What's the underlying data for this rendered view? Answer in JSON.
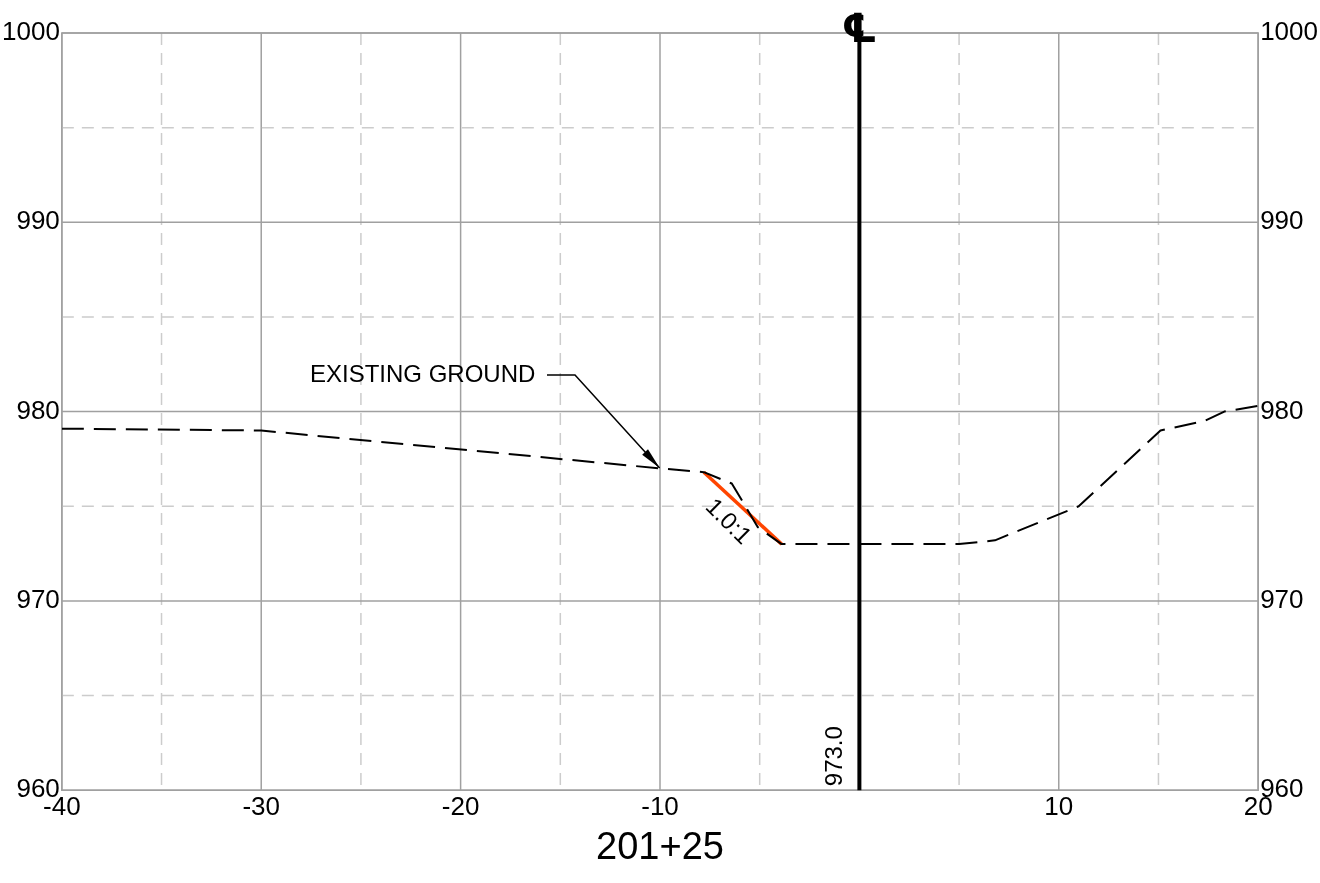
{
  "chart_data": {
    "type": "line",
    "xlabel": "201+25",
    "xlim": [
      -40,
      20
    ],
    "xticks": [
      -40,
      {
        "value": -35,
        "label": null
      },
      -30,
      {
        "value": -25,
        "label": null
      },
      -20,
      {
        "value": -15,
        "label": null
      },
      -10,
      {
        "value": -5,
        "label": null
      },
      {
        "value": 0,
        "label": null
      },
      {
        "value": 5,
        "label": null
      },
      10,
      {
        "value": 15,
        "label": null
      },
      20
    ],
    "ylim": [
      960,
      1000
    ],
    "yticks": [
      960,
      {
        "value": 965,
        "label": null
      },
      970,
      {
        "value": 975,
        "label": null
      },
      980,
      {
        "value": 985,
        "label": null
      },
      990,
      {
        "value": 995,
        "label": null
      },
      1000
    ],
    "y2lim": [
      960,
      1000
    ],
    "y2ticks": [
      960,
      970,
      980,
      990,
      1000
    ],
    "grid": true,
    "legend": false,
    "marker": "none",
    "series": [
      {
        "color": "#000000",
        "line_style": "dashed",
        "x": [
          -40,
          -30,
          -10,
          -7.8,
          -6.4,
          -6.0,
          -5.1,
          -3.9,
          5.0,
          6.8,
          11.0,
          15.1,
          17.3,
          18.3,
          20
        ],
        "values": [
          979.1,
          979.0,
          977.0,
          976.8,
          976.2,
          975.5,
          973.9,
          973.0,
          973.0,
          973.2,
          975.0,
          979.0,
          979.5,
          980.0,
          980.3
        ]
      },
      {
        "color": "#ff4500",
        "line_style": "solid",
        "x": [
          -7.8,
          -3.9
        ],
        "values": [
          976.8,
          973.0
        ]
      }
    ],
    "ref_lines": [
      {
        "axis": "x",
        "value": 0,
        "label": "℄",
        "color": "#000000"
      }
    ],
    "annotations": [
      {
        "text": "EXISTING GROUND",
        "x": -10,
        "y": 977
      },
      {
        "text": "1.0:1",
        "x": -5.9,
        "y": 974.9
      },
      "973.0"
    ]
  }
}
